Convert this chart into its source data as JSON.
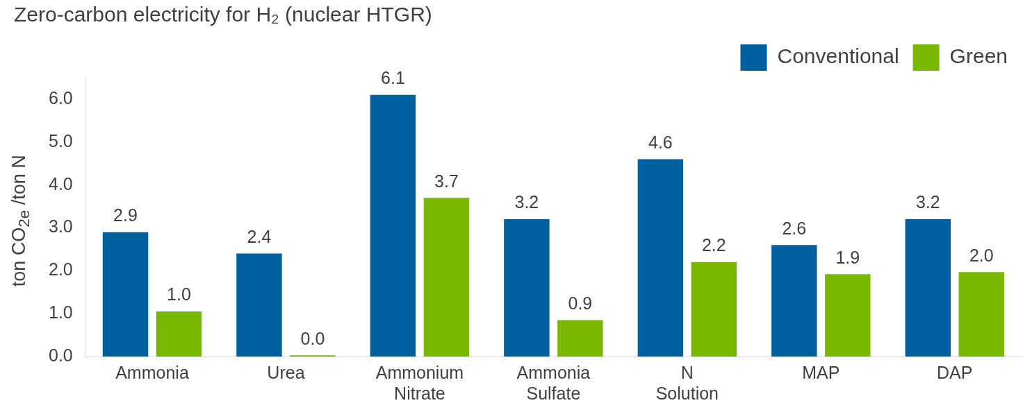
{
  "chart_data": {
    "type": "bar",
    "title": "Zero-carbon electricity for H₂ (nuclear HTGR)",
    "ylabel": "ton CO$_{2e}$ /ton N",
    "categories": [
      "Ammonia",
      "Urea",
      "Ammonium Nitrate",
      "Ammonia Sulfate",
      "N Solution",
      "MAP",
      "DAP"
    ],
    "series": [
      {
        "name": "Conventional",
        "color": "#005f9e",
        "values": [
          2.9,
          2.4,
          6.1,
          3.2,
          4.6,
          2.6,
          3.2
        ],
        "value_labels": [
          "2.9",
          "2.4",
          "6.1",
          "3.2",
          "4.6",
          "2.6",
          "3.2"
        ]
      },
      {
        "name": "Green",
        "color": "#7ab800",
        "values": [
          1.05,
          0.03,
          3.7,
          0.85,
          2.2,
          1.92,
          1.97
        ],
        "value_labels": [
          "1.0",
          "0.0",
          "3.7",
          "0.9",
          "2.2",
          "1.9",
          "2.0"
        ]
      }
    ],
    "ylim": [
      0,
      6.5
    ],
    "yticks": [
      {
        "value": 0,
        "label": "0.0"
      },
      {
        "value": 1,
        "label": "1.0"
      },
      {
        "value": 2,
        "label": "2.0"
      },
      {
        "value": 3,
        "label": "3.0"
      },
      {
        "value": 4,
        "label": "4.0"
      },
      {
        "value": 5,
        "label": "5.0"
      },
      {
        "value": 6,
        "label": "6.0"
      }
    ],
    "grid": false,
    "legend": "top right"
  }
}
